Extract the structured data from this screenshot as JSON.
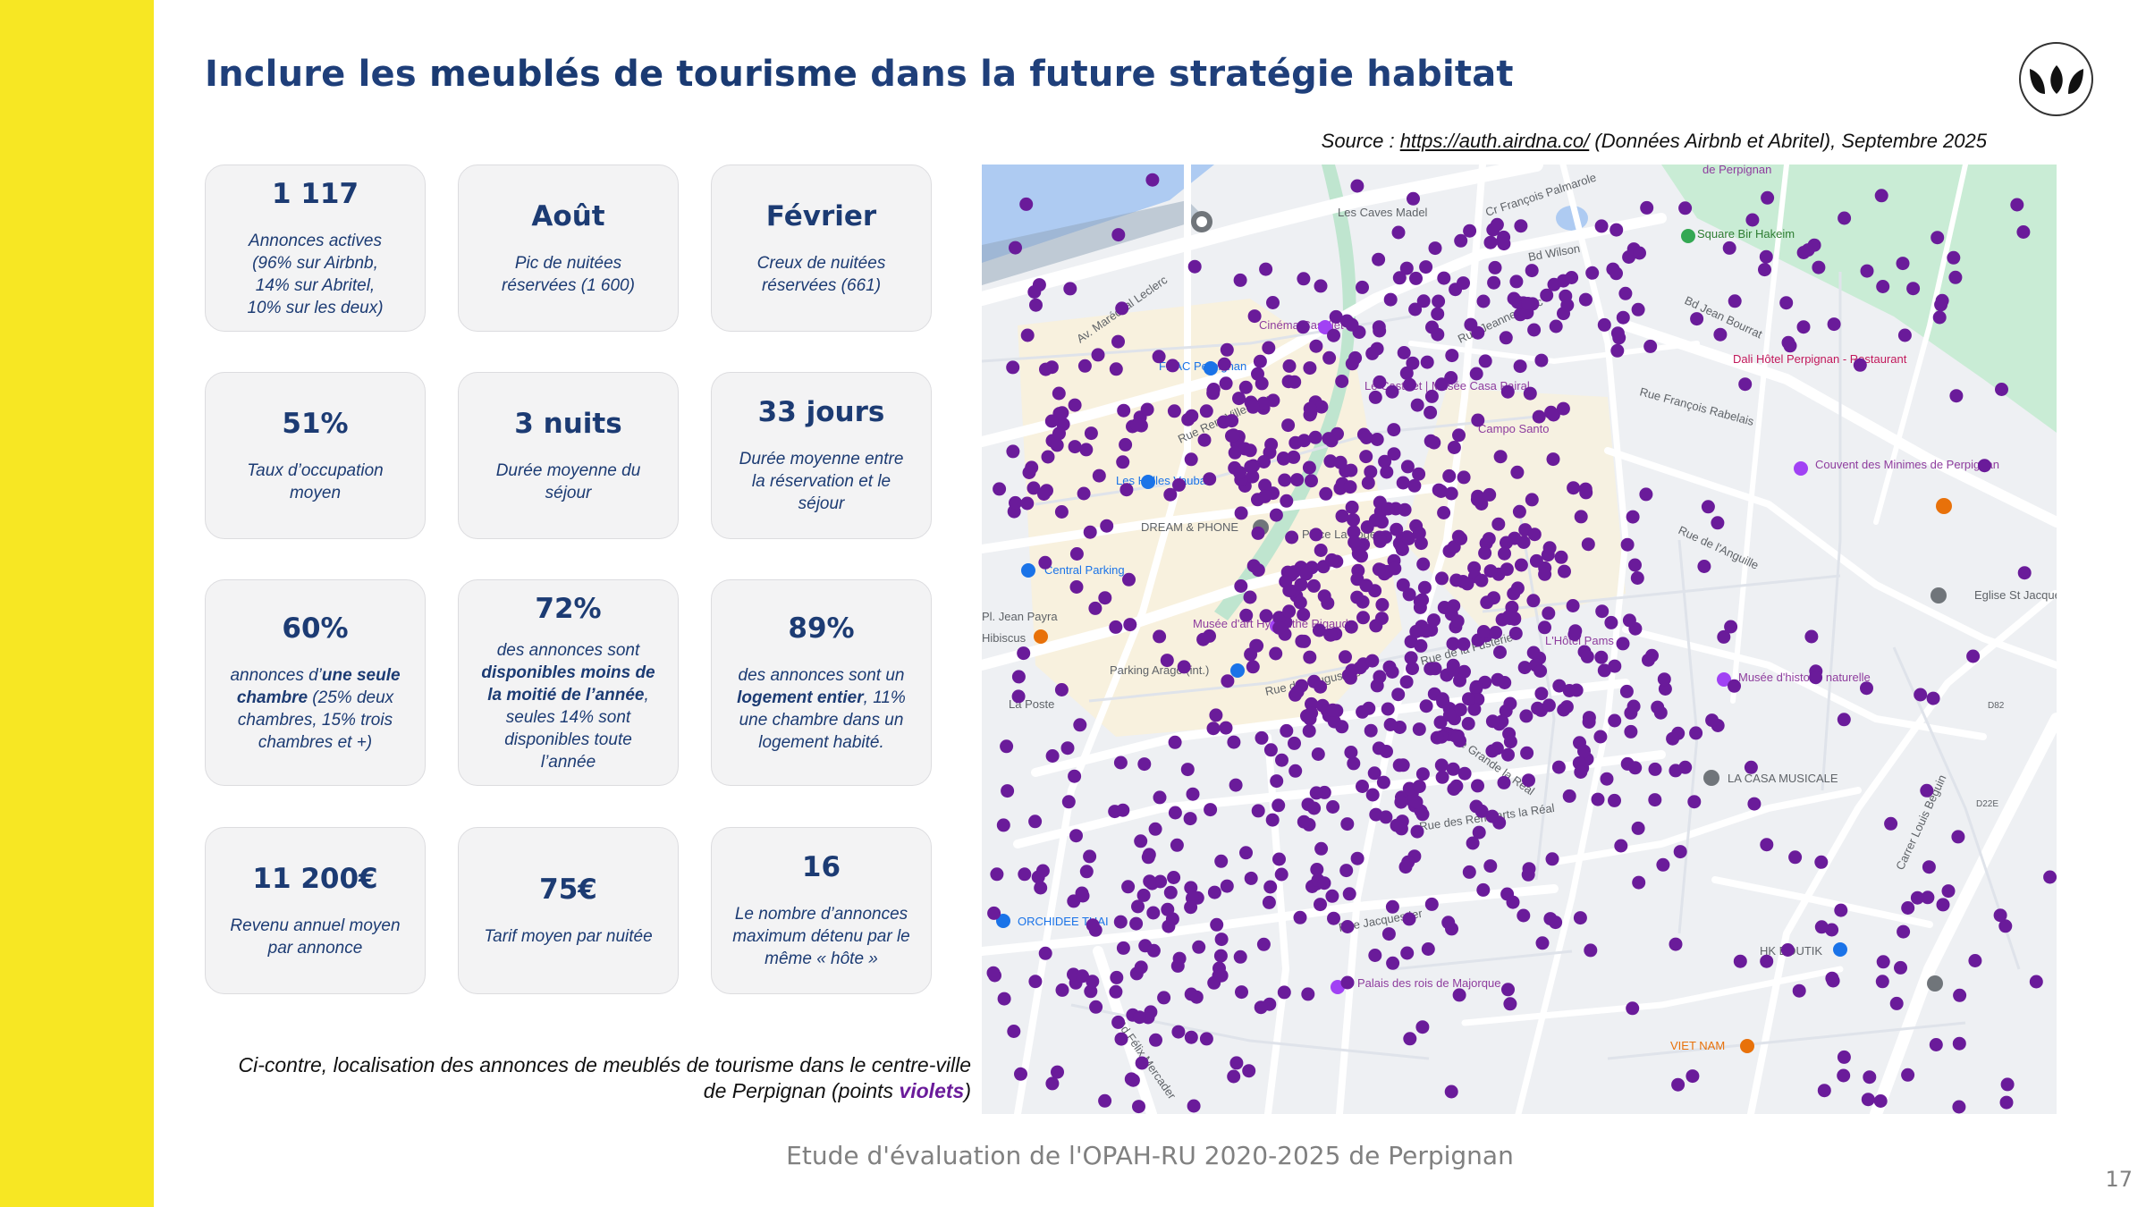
{
  "title": {
    "prefix": "Inclure les ",
    "bold": "meublés de tourisme",
    "suffix": " dans la future stratégie habitat"
  },
  "source": {
    "label": "Source : ",
    "link": "https://auth.airdna.co/",
    "detail": " (Données Airbnb et Abritel), Septembre 2025"
  },
  "cards": [
    {
      "value": "1 117",
      "desc": "Annonces actives (96% sur Airbnb, 14% sur Abritel, 10% sur les deux)"
    },
    {
      "value": "Août",
      "desc": "Pic de nuitées réservées (1 600)"
    },
    {
      "value": "Février",
      "desc": "Creux de nuitées réservées (661)"
    },
    {
      "value": "51%",
      "desc": "Taux d’occupation moyen"
    },
    {
      "value": "3 nuits",
      "desc": "Durée moyenne du séjour"
    },
    {
      "value": "33 jours",
      "desc": "Durée moyenne entre la réservation et le séjour"
    },
    {
      "value": "60%",
      "desc_a": "annonces d’",
      "desc_b": "une seule chambre",
      "desc_c": " (25% deux chambres, 15% trois chambres et +)"
    },
    {
      "value": "72%",
      "desc_a": "des annonces sont ",
      "desc_b": "disponibles moins de la moitié de l’année",
      "desc_c": ", seules 14% sont disponibles toute l’année"
    },
    {
      "value": "89%",
      "desc_a": "des annonces sont un ",
      "desc_b": "logement entier",
      "desc_c": ", 11% une chambre dans un logement habité."
    },
    {
      "value": "11 200€",
      "desc": "Revenu annuel moyen par annonce"
    },
    {
      "value": "75€",
      "desc": "Tarif moyen par nuitée"
    },
    {
      "value": "16",
      "desc": "Le nombre d’annonces maximum détenu par le même « hôte »"
    }
  ],
  "caption": {
    "main": "Ci-contre, localisation des annonces de meublés de tourisme dans le centre-ville de Perpignan (points ",
    "highlight": "violets",
    "end": ")"
  },
  "map": {
    "dot_color": "#6a1b9a",
    "labels": {
      "caves": "Les Caves Madel",
      "palmarole": "Cr François Palmarole",
      "perpignan_top": "de Perpignan",
      "bir_hakeim": "Square Bir Hakeim",
      "wilson": "Bd Wilson",
      "cinema": "Cinéma Castillet",
      "fnac": "FNAC Perpignan",
      "leclerc": "Av. Maréchal Leclerc",
      "jeanne_arc": "Rue Jeanne d'Arc",
      "bd_jean_bourrat": "Bd Jean Bourrat",
      "dali": "Dali Hôtel Perpignan - Restaurant",
      "castillet": "Le Castillet | Musée Casa Pairal",
      "campo": "Campo Santo",
      "rabelais": "Rue François Rabelais",
      "halles": "Les Halles Vauban",
      "rue_rem": "Rue Rem Villeneuve",
      "couvent": "Couvent des Minimes de Perpignan",
      "dream": "DREAM & PHONE",
      "place_loge": "Place La Loge",
      "anguille": "Rue de l'Anguille",
      "central_parking": "Central Parking",
      "pl_jean_payra": "Pl. Jean Payra",
      "hibiscus": "Hibiscus",
      "musee_rigaud": "Musée d'art Hyacinthe Rigaud",
      "hotel_pams": "L'Hôtel Pams",
      "eglise": "Eglise St Jacques",
      "parking_arago": "Parking Arago (int.)",
      "la_poste": "La Poste",
      "augustins": "Rue des Augustins",
      "rue_fusterie": "Rue de la Fusterie",
      "musee_histoire": "Musée d'histoire naturelle",
      "casa_musicale": "LA CASA MUSICALE",
      "remparts": "Rue des Remparts la Réal",
      "orchidee": "ORCHIDEE THAI",
      "jacques_ier": "Rue Jacques Ier",
      "hk_boutik": "HK BOUTIK",
      "palais": "Palais des rois de Majorque",
      "viet_nam": "VIET NAM",
      "felix_mercader": "Bd Félix Mercader",
      "grande_real": "Rue Grande la Réal",
      "d82": "D82",
      "d22e": "D22E",
      "carrer": "Carrer Louis Béguin"
    }
  },
  "footer": "Etude d'évaluation de l'OPAH-RU 2020-2025 de Perpignan",
  "page_number": "17"
}
